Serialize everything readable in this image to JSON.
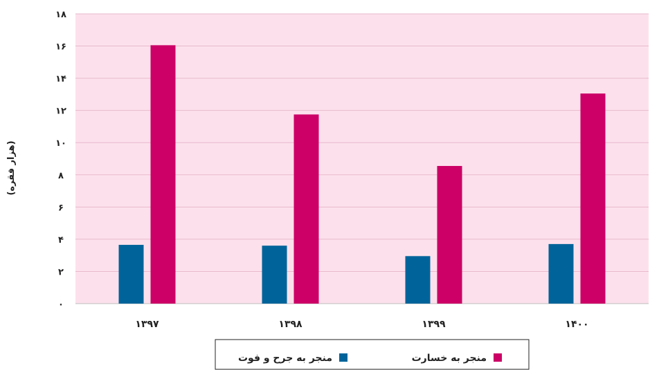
{
  "chart_data": {
    "type": "bar",
    "title": "",
    "xlabel": "",
    "ylabel": "(هزار فقره)",
    "categories": [
      "۱۳۹۷",
      "۱۳۹۸",
      "۱۳۹۹",
      "۱۴۰۰"
    ],
    "series": [
      {
        "name": "منجر به جرح و فوت",
        "color": "#00649a",
        "values": [
          3.65,
          3.6,
          2.95,
          3.7
        ]
      },
      {
        "name": "منجر به خسارت",
        "color": "#cc0066",
        "values": [
          16.05,
          11.75,
          8.55,
          13.05
        ]
      }
    ],
    "ylim": [
      0,
      18
    ],
    "yticks": [
      0,
      2,
      4,
      6,
      8,
      10,
      12,
      14,
      16,
      18
    ],
    "ytick_labels": [
      "۰",
      "۲",
      "۴",
      "۶",
      "۸",
      "۱۰",
      "۱۲",
      "۱۴",
      "۱۶",
      "۱۸"
    ],
    "plot_background": "#fce1ec",
    "gridlines": true,
    "legend_position": "bottom"
  }
}
